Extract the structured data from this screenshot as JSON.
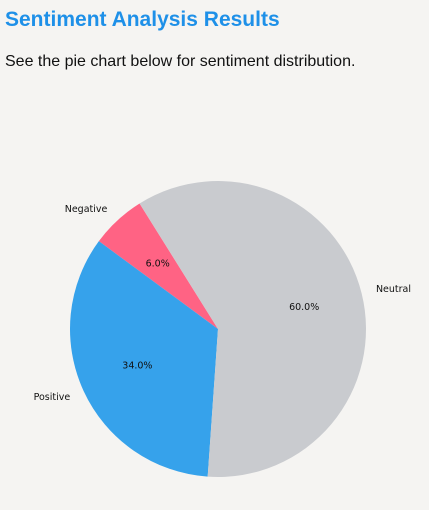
{
  "page": {
    "title": "Sentiment Analysis Results",
    "subtitle": "See the pie chart below for sentiment distribution."
  },
  "chart_data": {
    "type": "pie",
    "title": "",
    "slices": [
      {
        "label": "Negative",
        "value": 6.0,
        "pct_label": "6.0%",
        "color": "#ff6384"
      },
      {
        "label": "Positive",
        "value": 34.0,
        "pct_label": "34.0%",
        "color": "#36a2eb"
      },
      {
        "label": "Neutral",
        "value": 60.0,
        "pct_label": "60.0%",
        "color": "#c9cbcf"
      }
    ],
    "start_angle_deg": 122,
    "direction": "counterclockwise",
    "legend": "none"
  }
}
